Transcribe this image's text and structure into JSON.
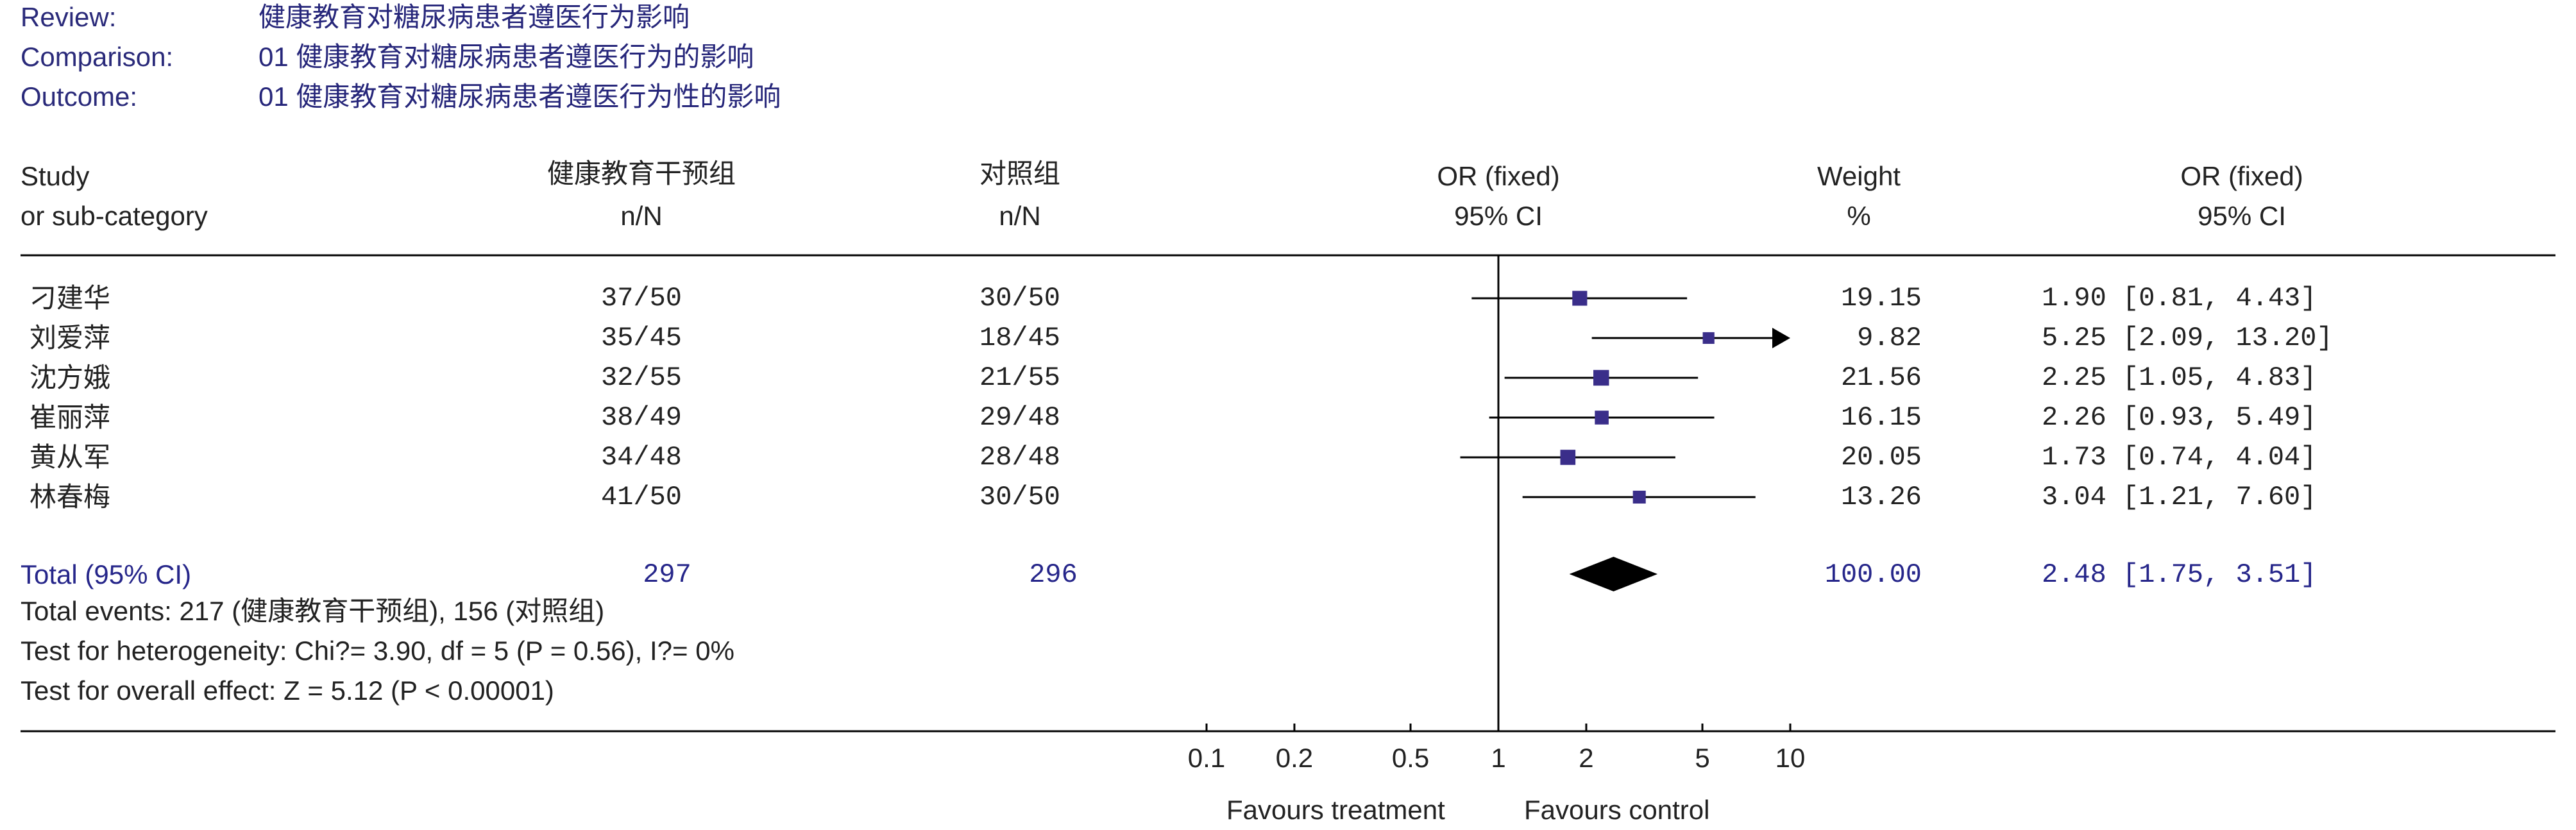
{
  "meta": {
    "review_label": "Review:",
    "review_value": "健康教育对糖尿病患者遵医行为影响",
    "comparison_label": "Comparison:",
    "comparison_value": "01 健康教育对糖尿病患者遵医行为的影响",
    "outcome_label": "Outcome:",
    "outcome_value": "01 健康教育对糖尿病患者遵医行为性的影响"
  },
  "headers": {
    "study": "Study",
    "subcat": "or sub-category",
    "group1": "健康教育干预组",
    "group1_sub": "n/N",
    "group2": "对照组",
    "group2_sub": "n/N",
    "or_fixed": "OR (fixed)",
    "ci": "95% CI",
    "weight": "Weight",
    "weight_unit": "%",
    "or_fixed2": "OR (fixed)",
    "ci2": "95% CI"
  },
  "total": {
    "label": "Total (95% CI)",
    "n1": "297",
    "n2": "296",
    "weight": "100.00",
    "or_text": "2.48 [1.75, 3.51]"
  },
  "footnotes": {
    "events": "Total events: 217 (健康教育干预组), 156 (对照组)",
    "heterogeneity": "Test for heterogeneity: Chi?= 3.90, df = 5 (P = 0.56), I?= 0%",
    "overall": "Test for overall effect: Z = 5.12 (P < 0.00001)"
  },
  "axis_labels": {
    "left": "Favours treatment",
    "right": "Favours control"
  },
  "colors": {
    "marker": "#3a2e8a",
    "line": "#000000",
    "diamond": "#000000"
  },
  "chart_data": {
    "type": "forest",
    "scale": "log",
    "xlim": [
      0.1,
      10
    ],
    "ticks": [
      0.1,
      0.2,
      0.5,
      1,
      2,
      5,
      10
    ],
    "tick_labels": [
      "0.1",
      "0.2",
      "0.5",
      "1",
      "2",
      "5",
      "10"
    ],
    "null_value": 1,
    "studies": [
      {
        "name": "刁建华",
        "g1": "37/50",
        "g2": "30/50",
        "or": 1.9,
        "lo": 0.81,
        "hi": 4.43,
        "weight": "19.15",
        "or_text": "1.90 [0.81, 4.43]"
      },
      {
        "name": "刘爱萍",
        "g1": "35/45",
        "g2": "18/45",
        "or": 5.25,
        "lo": 2.09,
        "hi": 13.2,
        "weight": "9.82",
        "or_text": "5.25 [2.09, 13.20]"
      },
      {
        "name": "沈方娥",
        "g1": "32/55",
        "g2": "21/55",
        "or": 2.25,
        "lo": 1.05,
        "hi": 4.83,
        "weight": "21.56",
        "or_text": "2.25 [1.05, 4.83]"
      },
      {
        "name": "崔丽萍",
        "g1": "38/49",
        "g2": "29/48",
        "or": 2.26,
        "lo": 0.93,
        "hi": 5.49,
        "weight": "16.15",
        "or_text": "2.26 [0.93, 5.49]"
      },
      {
        "name": "黄从军",
        "g1": "34/48",
        "g2": "28/48",
        "or": 1.73,
        "lo": 0.74,
        "hi": 4.04,
        "weight": "20.05",
        "or_text": "1.73 [0.74, 4.04]"
      },
      {
        "name": "林春梅",
        "g1": "41/50",
        "g2": "30/50",
        "or": 3.04,
        "lo": 1.21,
        "hi": 7.6,
        "weight": "13.26",
        "or_text": "3.04 [1.21, 7.60]"
      }
    ],
    "total": {
      "or": 2.48,
      "lo": 1.75,
      "hi": 3.51
    }
  }
}
